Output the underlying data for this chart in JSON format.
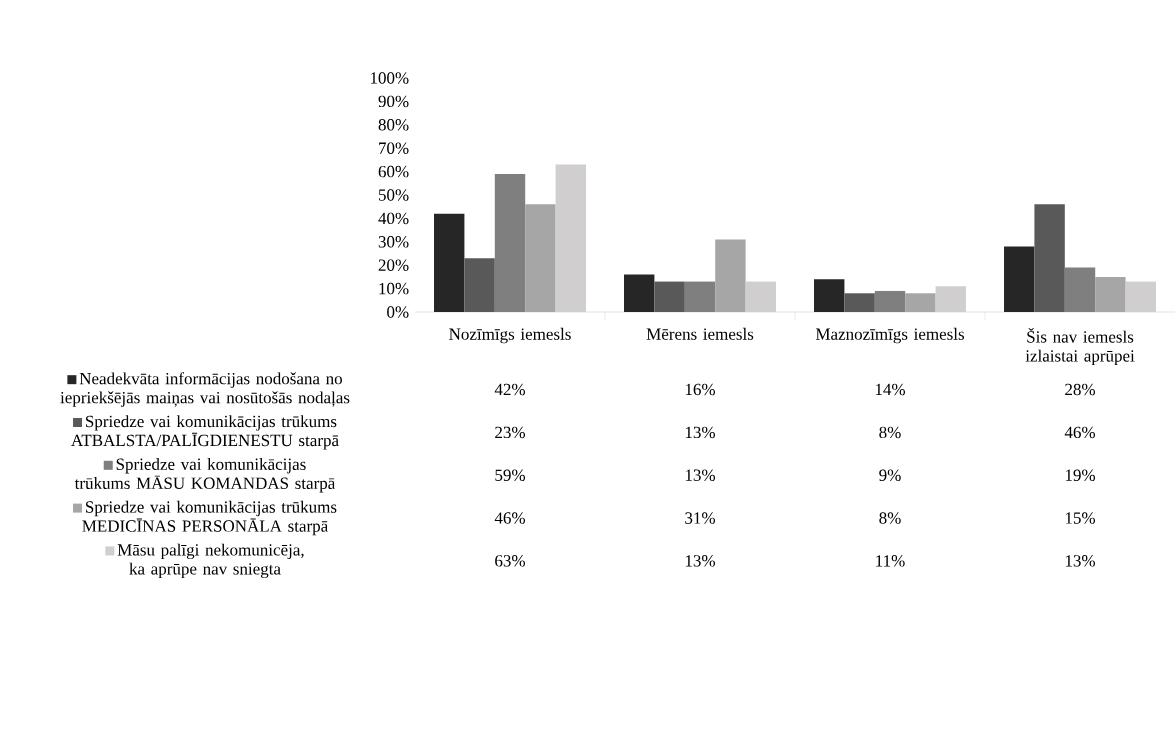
{
  "chart_data": {
    "type": "bar",
    "categories": [
      "Nozīmīgs iemesls",
      "Mērens iemesls",
      "Maznozīmīgs iemesls",
      "Šis nav iemesls izlaistai aprūpei"
    ],
    "series": [
      {
        "name": "Neadekvāta informācijas nodošana no iepriekšējās maiņas vai nosūtošās nodaļas",
        "color": "#262626",
        "values": [
          42,
          16,
          14,
          28
        ],
        "value_labels": [
          "42%",
          "16%",
          "14%",
          "28%"
        ]
      },
      {
        "name": "Spriedze vai komunikācijas trūkums ATBALSTA/PALĪGDIENESTU starpā",
        "color": "#595959",
        "values": [
          23,
          13,
          8,
          46
        ],
        "value_labels": [
          "23%",
          "13%",
          "8%",
          "46%"
        ]
      },
      {
        "name": "Spriedze vai komunikācijas trūkums MĀSU KOMANDAS starpā",
        "color": "#7f7f7f",
        "values": [
          59,
          13,
          9,
          19
        ],
        "value_labels": [
          "59%",
          "13%",
          "9%",
          "19%"
        ]
      },
      {
        "name": "Spriedze vai komunikācijas trūkums MEDICĪNAS PERSONĀLA starpā",
        "color": "#a6a6a6",
        "values": [
          46,
          31,
          8,
          15
        ],
        "value_labels": [
          "46%",
          "31%",
          "8%",
          "15%"
        ]
      },
      {
        "name": "Māsu palīgi nekomunicēja, ka aprūpe nav sniegta",
        "color": "#d0cece",
        "values": [
          63,
          13,
          11,
          13
        ],
        "value_labels": [
          "63%",
          "13%",
          "11%",
          "13%"
        ]
      }
    ],
    "ylim": [
      0,
      100
    ],
    "yticks": [
      {
        "value": 0,
        "label": "0%"
      },
      {
        "value": 10,
        "label": "10%"
      },
      {
        "value": 20,
        "label": "20%"
      },
      {
        "value": 30,
        "label": "30%"
      },
      {
        "value": 40,
        "label": "40%"
      },
      {
        "value": 50,
        "label": "50%"
      },
      {
        "value": 60,
        "label": "60%"
      },
      {
        "value": 70,
        "label": "70%"
      },
      {
        "value": 80,
        "label": "80%"
      },
      {
        "value": 90,
        "label": "90%"
      },
      {
        "value": 100,
        "label": "100%"
      }
    ],
    "legend": "bottom"
  }
}
